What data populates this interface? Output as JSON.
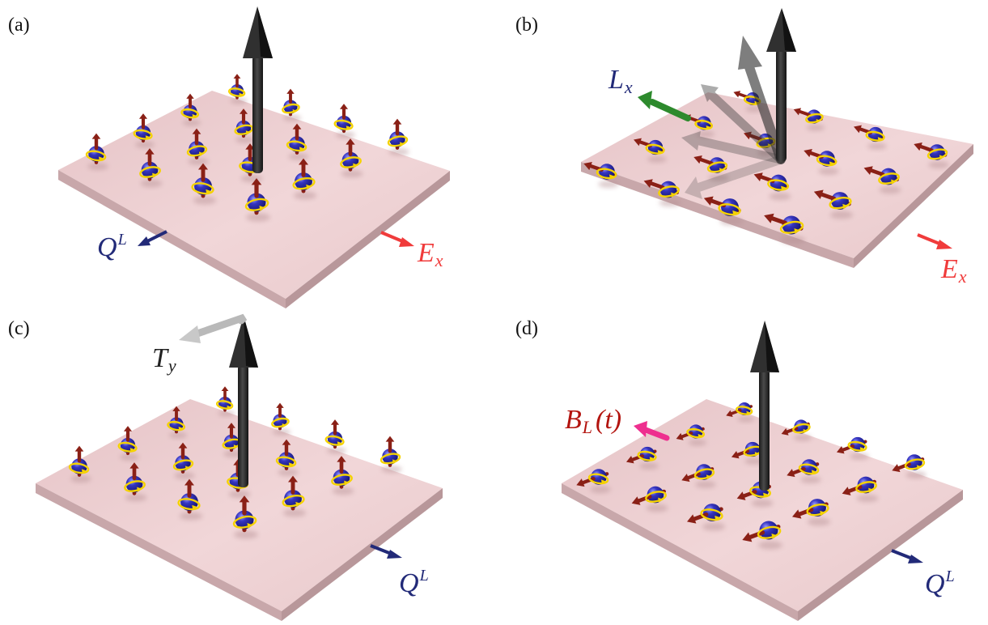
{
  "colors": {
    "plate_top": "#eccccf",
    "plate_side": "#c9a9ac",
    "orbital": "#2a2aa6",
    "spin_arrow": "#8a2016",
    "current_loop": "#f4d200",
    "big_arrow": "#2c2c2c",
    "E_field": "#f03b3b",
    "Q_vector": "#222a78",
    "L_vector": "#2d8a2d",
    "T_vector": "#b9b9b9",
    "B_field": "#ee2f8f"
  },
  "panels": [
    {
      "id": "a",
      "label": "(a)",
      "arrows": [
        {
          "kind": "Q",
          "symbol_main": "Q",
          "symbol_script": "L",
          "script_type": "sup",
          "color": "#222a78",
          "icon": "arrow-icon"
        },
        {
          "kind": "E",
          "symbol_main": "E",
          "symbol_script": "x",
          "script_type": "sub",
          "color": "#f03b3b",
          "icon": "arrow-icon"
        }
      ]
    },
    {
      "id": "b",
      "label": "(b)",
      "arrows": [
        {
          "kind": "L",
          "symbol_main": "L",
          "symbol_script": "x",
          "script_type": "sub",
          "color": "#2d8a2d",
          "icon": "arrow-icon"
        },
        {
          "kind": "E",
          "symbol_main": "E",
          "symbol_script": "x",
          "script_type": "sub",
          "color": "#f03b3b",
          "icon": "arrow-icon"
        }
      ]
    },
    {
      "id": "c",
      "label": "(c)",
      "arrows": [
        {
          "kind": "T",
          "symbol_main": "T",
          "symbol_script": "y",
          "script_type": "sub",
          "color": "#222222",
          "icon": "arrow-icon"
        },
        {
          "kind": "Q",
          "symbol_main": "Q",
          "symbol_script": "L",
          "script_type": "sup",
          "color": "#222a78",
          "icon": "arrow-icon"
        }
      ]
    },
    {
      "id": "d",
      "label": "(d)",
      "arrows": [
        {
          "kind": "B",
          "symbol_main": "B",
          "symbol_script": "L",
          "script_type": "sub",
          "symbol_tail": "(t)",
          "color": "#b3140f",
          "icon": "arrow-icon"
        },
        {
          "kind": "Q",
          "symbol_main": "Q",
          "symbol_script": "L",
          "script_type": "sup",
          "color": "#222a78",
          "icon": "arrow-icon"
        }
      ]
    }
  ]
}
